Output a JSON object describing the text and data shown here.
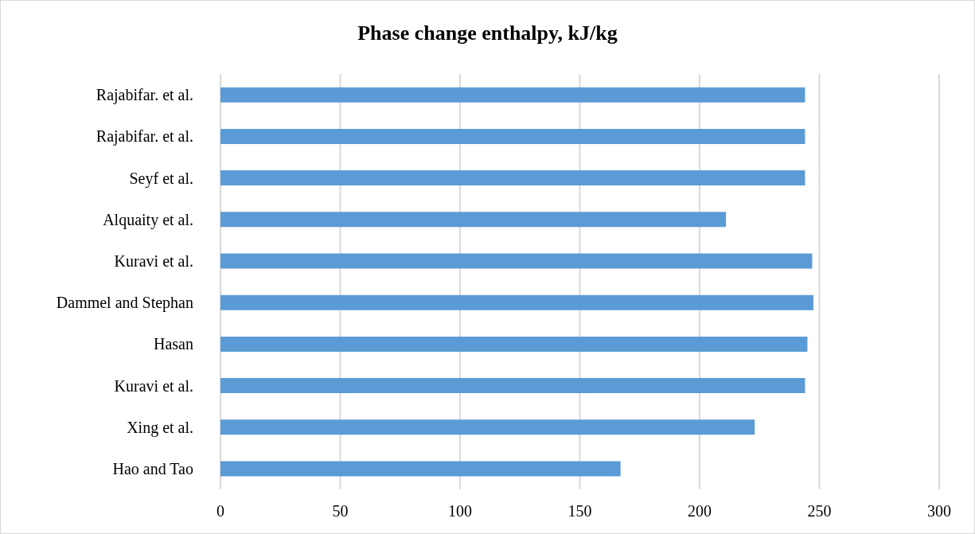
{
  "chart_data": {
    "type": "bar",
    "orientation": "horizontal",
    "title": "Phase change enthalpy, kJ/kg",
    "categories": [
      "Rajabifar. et al.",
      "Rajabifar. et al.",
      "Seyf et al.",
      "Alquaity et al.",
      "Kuravi et al.",
      "Dammel and Stephan",
      "Hasan",
      "Kuravi et al.",
      "Xing et al.",
      "Hao and Tao"
    ],
    "values": [
      244,
      244,
      244,
      211,
      247,
      247.5,
      245,
      244,
      223,
      167
    ],
    "color": "#5b9bd5",
    "xlim": [
      0,
      300
    ],
    "xticks": [
      0,
      50,
      100,
      150,
      200,
      250,
      300
    ],
    "grid": "x"
  }
}
